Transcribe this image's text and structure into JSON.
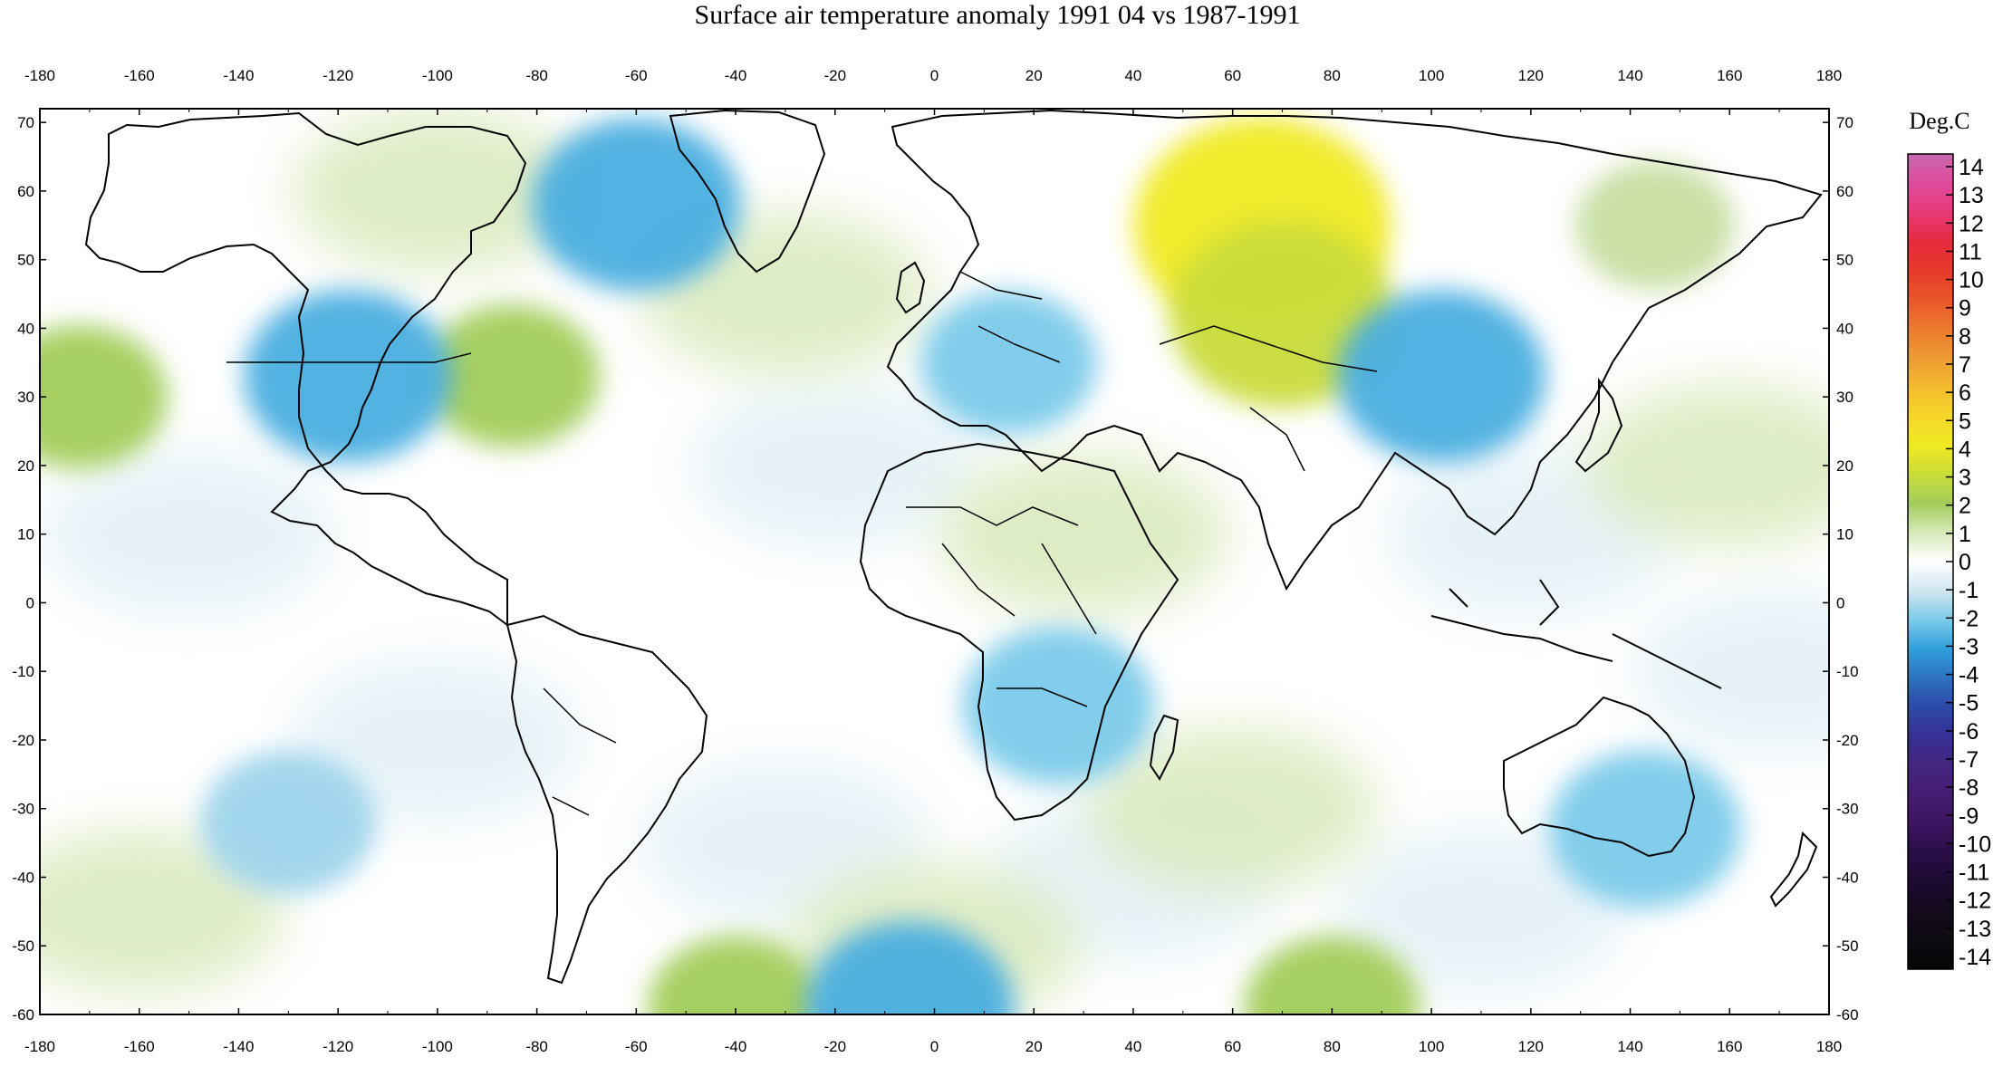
{
  "title": "Surface air temperature anomaly 1991 04 vs 1987-1991",
  "colorbar": {
    "unit": "Deg.C",
    "labels": [
      "14",
      "13",
      "12",
      "11",
      "10",
      "9",
      "8",
      "7",
      "6",
      "5",
      "4",
      "3",
      "2",
      "1",
      "0",
      "-1",
      "-2",
      "-3",
      "-4",
      "-5",
      "-6",
      "-7",
      "-8",
      "-9",
      "-10",
      "-11",
      "-12",
      "-13",
      "-14"
    ],
    "colors": [
      "#c86ab0",
      "#e04a9c",
      "#e83a78",
      "#e62a3e",
      "#e63a2a",
      "#e9562a",
      "#ec7a2e",
      "#ee9a34",
      "#f3bb2e",
      "#f6d62a",
      "#f1ea22",
      "#cadc3a",
      "#a2cd5a",
      "#d7e9b8",
      "#ffffff",
      "#d0e6f1",
      "#7ccbea",
      "#2f9fdc",
      "#2d71c0",
      "#2c4aa8",
      "#372f94",
      "#432580",
      "#461c72",
      "#3d1460",
      "#2a0e48",
      "#1c0a30",
      "#140a1c",
      "#0e0a12",
      "#050505"
    ]
  },
  "axes": {
    "lon_ticks": [
      "-180",
      "-160",
      "-140",
      "-120",
      "-100",
      "-80",
      "-60",
      "-40",
      "-20",
      "0",
      "20",
      "40",
      "60",
      "80",
      "100",
      "120",
      "140",
      "160",
      "180"
    ],
    "lat_ticks": [
      "70",
      "60",
      "50",
      "40",
      "30",
      "20",
      "10",
      "0",
      "-10",
      "-20",
      "-30",
      "-40",
      "-50",
      "-60"
    ]
  },
  "anomaly_fields": [
    {
      "name": "anomaly-siberia-warm",
      "lon": 66,
      "lat": 55,
      "value": 4,
      "color": "#f1ea22"
    },
    {
      "name": "anomaly-central-asia-warm",
      "lon": 70,
      "lat": 42,
      "value": 3,
      "color": "#cadc3a"
    },
    {
      "name": "anomaly-eastern-us-warm",
      "lon": -85,
      "lat": 33,
      "value": 1.5,
      "color": "#a2cd5a"
    },
    {
      "name": "anomaly-pacific-warm",
      "lon": -172,
      "lat": 30,
      "value": 1.5,
      "color": "#a2cd5a"
    },
    {
      "name": "anomaly-east-asia-warm",
      "lon": 145,
      "lat": 55,
      "value": 1,
      "color": "#c7dea2"
    },
    {
      "name": "anomaly-antarctic-warm-1",
      "lon": -40,
      "lat": -59,
      "value": 1.5,
      "color": "#a2cd5a"
    },
    {
      "name": "anomaly-antarctic-warm-2",
      "lon": 80,
      "lat": -59,
      "value": 1.5,
      "color": "#a2cd5a"
    },
    {
      "name": "anomaly-western-us-cold",
      "lon": -118,
      "lat": 33,
      "value": -2.5,
      "color": "#49aee0"
    },
    {
      "name": "anomaly-labrador-cold",
      "lon": -60,
      "lat": 58,
      "value": -2.5,
      "color": "#49aee0"
    },
    {
      "name": "anomaly-mongolia-cold",
      "lon": 102,
      "lat": 33,
      "value": -2.5,
      "color": "#49aee0"
    },
    {
      "name": "anomaly-europe-cold",
      "lon": 15,
      "lat": 35,
      "value": -1.5,
      "color": "#7ccbea"
    },
    {
      "name": "anomaly-southern-africa-cold",
      "lon": 25,
      "lat": -15,
      "value": -2,
      "color": "#7ccbea"
    },
    {
      "name": "anomaly-australia-cold",
      "lon": 143,
      "lat": -33,
      "value": -2,
      "color": "#7ccbea"
    },
    {
      "name": "anomaly-south-pacific-cold",
      "lon": -130,
      "lat": -32,
      "value": -1.5,
      "color": "#9ed4ec"
    },
    {
      "name": "anomaly-antarctic-cold",
      "lon": -5,
      "lat": -59,
      "value": -2.5,
      "color": "#49aee0"
    }
  ],
  "map_style": {
    "ocean_light_blue": "#e4f1f7",
    "light_green": "#dbeac0",
    "coast_color": "#000000"
  }
}
